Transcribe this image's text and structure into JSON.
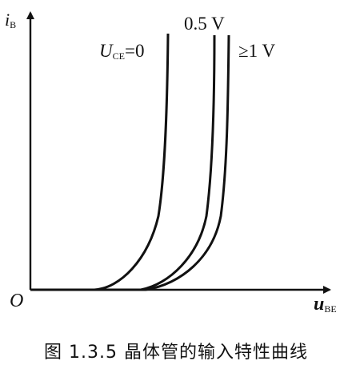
{
  "axes": {
    "y_label": "i",
    "y_label_sub": "B",
    "x_label": "u",
    "x_label_sub": "BE",
    "origin": "O"
  },
  "curves": [
    {
      "label_main": "U",
      "label_sub": "CE",
      "label_rest": "=0"
    },
    {
      "label": "0.5 V"
    },
    {
      "label": "≥1 V"
    }
  ],
  "caption": "图 1.3.5   晶体管的输入特性曲线"
}
